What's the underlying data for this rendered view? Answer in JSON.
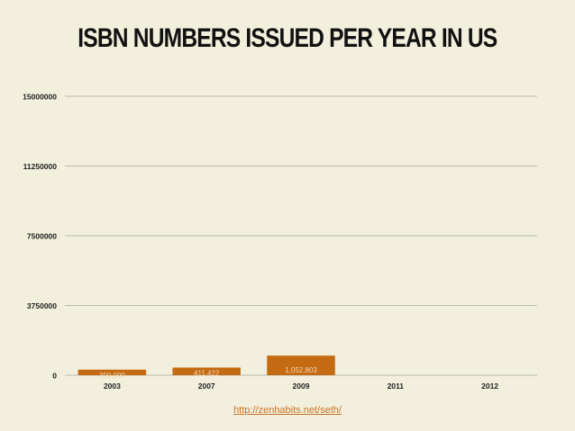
{
  "colors": {
    "background": "#f2efdc",
    "bar": "#c46a12",
    "gridline": "#a9a9a0",
    "text": "#222222",
    "link": "#c8742a"
  },
  "source_link": "http://zenhabits.net/seth/",
  "chart_data": {
    "type": "bar",
    "title": "ISBN NUMBERS ISSUED PER YEAR IN US",
    "xlabel": "",
    "ylabel": "",
    "categories": [
      "2003",
      "2007",
      "2009",
      "2011",
      "2012"
    ],
    "series": [
      {
        "values": [
          300000,
          411422,
          1052803,
          null,
          null
        ],
        "labels": [
          "300,000",
          "411,422",
          "1,052,803",
          "",
          ""
        ]
      }
    ],
    "ylim": [
      0,
      15000000
    ],
    "yticks": [
      "0",
      "3750000",
      "7500000",
      "11250000",
      "15000000"
    ],
    "grid": true,
    "legend": "none"
  }
}
